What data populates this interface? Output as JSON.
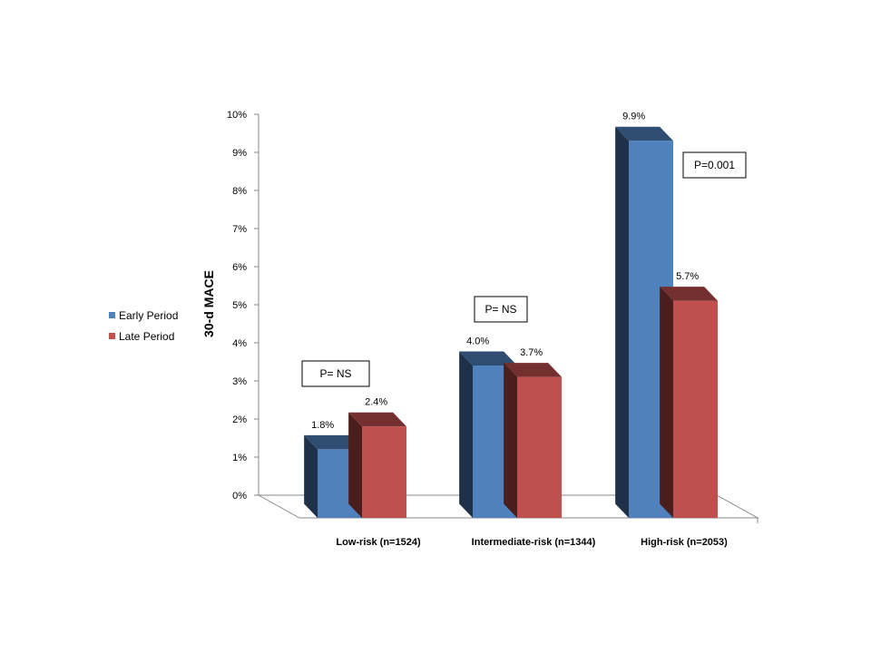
{
  "chart_data": {
    "type": "bar",
    "title": "",
    "xlabel": "",
    "ylabel": "30-d MACE",
    "ylim": [
      0,
      10
    ],
    "y_ticks": [
      "0%",
      "1%",
      "2%",
      "3%",
      "4%",
      "5%",
      "6%",
      "7%",
      "8%",
      "9%",
      "10%"
    ],
    "categories": [
      "Low-risk (n=1524)",
      "Intermediate-risk (n=1344)",
      "High-risk (n=2053)"
    ],
    "series": [
      {
        "name": "Early Period",
        "color": "#4F81BD",
        "values": [
          1.8,
          4.0,
          9.9
        ],
        "labels": [
          "1.8%",
          "4.0%",
          "9.9%"
        ]
      },
      {
        "name": "Late Period",
        "color": "#C0504D",
        "values": [
          2.4,
          3.7,
          5.7
        ],
        "labels": [
          "2.4%",
          "3.7%",
          "5.7%"
        ]
      }
    ],
    "annotations": [
      "P= NS",
      "P= NS",
      "P=0.001"
    ],
    "legend_position": "left",
    "grid": false,
    "style": "3d"
  }
}
